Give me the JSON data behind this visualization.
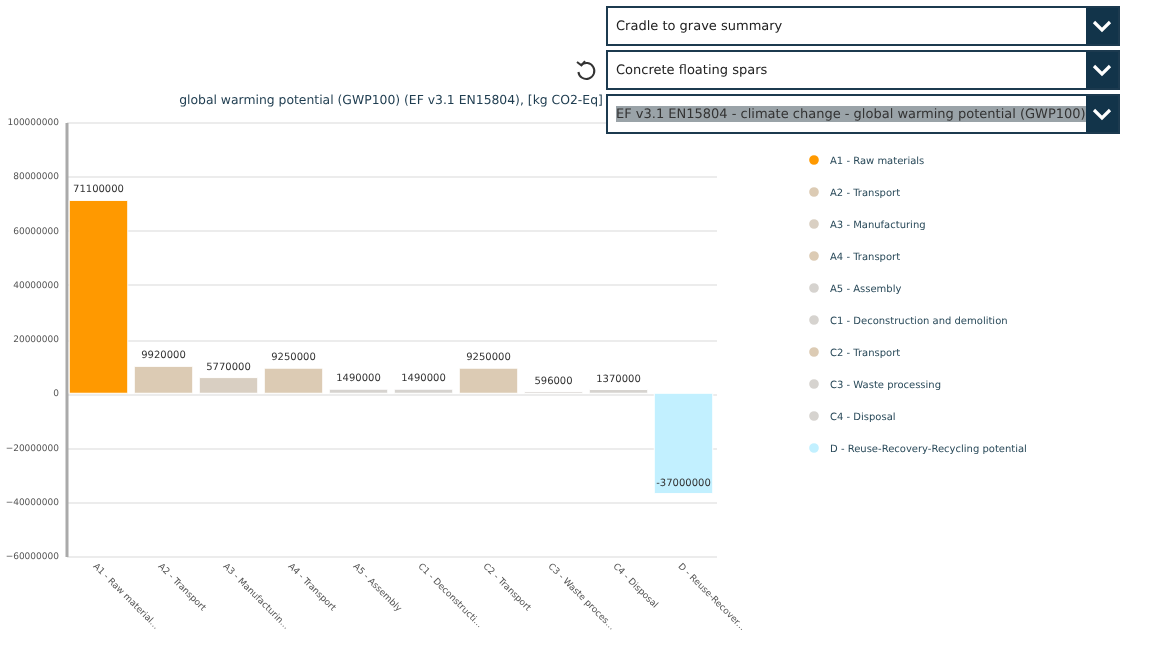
{
  "chart_data": {
    "type": "bar",
    "title": "global warming potential (GWP100) (EF v3.1 EN15804),  [kg CO2-Eq]",
    "annotations": [
      "Cradle to grave summary",
      "Concrete floating spars",
      "EF v3.1 EN15804 - climate change - global warming potential (GWP100)"
    ],
    "categories": [
      "A1 - Raw material...",
      "A2 - Transport",
      "A3 - Manufacturin...",
      "A4 - Transport",
      "A5 - Assembly",
      "C1 - Deconstructi...",
      "C2 - Transport",
      "C3 - Waste proces...",
      "C4 - Disposal",
      "D - Reuse-Recover..."
    ],
    "series": [
      {
        "name": "A1 - Raw materials",
        "color": "#ff9900",
        "values": [
          71100000,
          null,
          null,
          null,
          null,
          null,
          null,
          null,
          null,
          null
        ]
      },
      {
        "name": "A2 - Transport",
        "color": "#dccbb4",
        "values": [
          null,
          9920000,
          null,
          null,
          null,
          null,
          null,
          null,
          null,
          null
        ]
      },
      {
        "name": "A3 - Manufacturing",
        "color": "#d9cfc2",
        "values": [
          null,
          null,
          5770000,
          null,
          null,
          null,
          null,
          null,
          null,
          null
        ]
      },
      {
        "name": "A4 - Transport",
        "color": "#dccbb4",
        "values": [
          null,
          null,
          null,
          9250000,
          null,
          null,
          null,
          null,
          null,
          null
        ]
      },
      {
        "name": "A5 - Assembly",
        "color": "#d6d3cf",
        "values": [
          null,
          null,
          null,
          null,
          1490000,
          null,
          null,
          null,
          null,
          null
        ]
      },
      {
        "name": "C1 - Deconstruction and demolition",
        "color": "#d6d3cf",
        "values": [
          null,
          null,
          null,
          null,
          null,
          1490000,
          null,
          null,
          null,
          null
        ]
      },
      {
        "name": "C2 - Transport",
        "color": "#dccbb4",
        "values": [
          null,
          null,
          null,
          null,
          null,
          null,
          9250000,
          null,
          null,
          null
        ]
      },
      {
        "name": "C3 - Waste processing",
        "color": "#d6d3cf",
        "values": [
          null,
          null,
          null,
          null,
          null,
          null,
          null,
          596000,
          null,
          null
        ]
      },
      {
        "name": "C4 - Disposal",
        "color": "#d6d3cf",
        "values": [
          null,
          null,
          null,
          null,
          null,
          null,
          null,
          null,
          1370000,
          null
        ]
      },
      {
        "name": "D - Reuse-Recovery-Recycling potential",
        "color": "#c2f0ff",
        "values": [
          null,
          null,
          null,
          null,
          null,
          null,
          null,
          null,
          null,
          -37000000
        ]
      }
    ],
    "ylim": [
      -60000000,
      100000000
    ],
    "yticks": [
      -60000000,
      -40000000,
      -20000000,
      0,
      20000000,
      40000000,
      60000000,
      80000000,
      100000000
    ],
    "grid": "y",
    "legend": "right",
    "data_labels": true
  }
}
